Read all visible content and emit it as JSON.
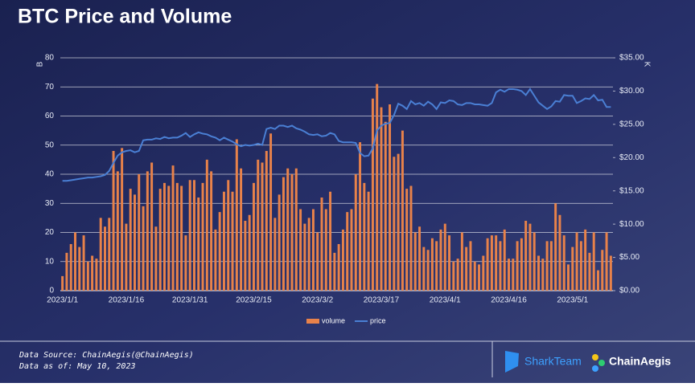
{
  "chart_data": {
    "type": "bar-line",
    "title": "BTC Price and Volume",
    "y_label": "B",
    "y2_label": "K",
    "categories": [
      "2023/1/1",
      null,
      null,
      null,
      null,
      null,
      null,
      null,
      null,
      null,
      null,
      null,
      null,
      null,
      null,
      "2023/1/16",
      null,
      null,
      null,
      null,
      null,
      null,
      null,
      null,
      null,
      null,
      null,
      null,
      null,
      null,
      "2023/1/31",
      null,
      null,
      null,
      null,
      null,
      null,
      null,
      null,
      null,
      null,
      null,
      null,
      null,
      null,
      "2023/2/15",
      null,
      null,
      null,
      null,
      null,
      null,
      null,
      null,
      null,
      null,
      null,
      null,
      null,
      null,
      "2023/3/2",
      null,
      null,
      null,
      null,
      null,
      null,
      null,
      null,
      null,
      null,
      null,
      null,
      null,
      null,
      "2023/3/17",
      null,
      null,
      null,
      null,
      null,
      null,
      null,
      null,
      null,
      null,
      null,
      null,
      null,
      null,
      "2023/4/1",
      null,
      null,
      null,
      null,
      null,
      null,
      null,
      null,
      null,
      null,
      null,
      null,
      null,
      null,
      "2023/4/16",
      null,
      null,
      null,
      null,
      null,
      null,
      null,
      null,
      null,
      null,
      null,
      null,
      null,
      null,
      "2023/5/1",
      null,
      null,
      null,
      null,
      null,
      null,
      null,
      null,
      null
    ],
    "series": [
      {
        "name": "volume",
        "type": "bar",
        "color": "#e8824a",
        "values": [
          5,
          13,
          16,
          20,
          15,
          19,
          10,
          12,
          11,
          25,
          22,
          25,
          48,
          41,
          49,
          23,
          35,
          33,
          40,
          29,
          41,
          44,
          22,
          35,
          37,
          36,
          43,
          37,
          36,
          19,
          38,
          38,
          32,
          37,
          45,
          41,
          21,
          27,
          34,
          38,
          34,
          52,
          42,
          24,
          26,
          37,
          45,
          44,
          48,
          54,
          25,
          33,
          39,
          42,
          40,
          42,
          28,
          23,
          25,
          28,
          20,
          32,
          28,
          34,
          13,
          16,
          21,
          27,
          28,
          40,
          51,
          37,
          34,
          66,
          71,
          63,
          58,
          64,
          46,
          47,
          55,
          35,
          36,
          20,
          22,
          15,
          14,
          18,
          17,
          21,
          23,
          19,
          10,
          11,
          20,
          15,
          17,
          10,
          9,
          12,
          18,
          19,
          19,
          17,
          21,
          11,
          11,
          17,
          18,
          24,
          23,
          20,
          12,
          11,
          17,
          17,
          30,
          26,
          19,
          9,
          15,
          20,
          17,
          21,
          13,
          20,
          7,
          14,
          20,
          12
        ]
      },
      {
        "name": "price",
        "type": "line",
        "axis": "y2",
        "color": "#4a7fd4",
        "values": [
          16.5,
          16.5,
          16.6,
          16.7,
          16.8,
          16.9,
          17,
          17,
          17.1,
          17.2,
          17.4,
          18,
          19.2,
          20.3,
          20.8,
          21,
          21.1,
          20.8,
          21,
          22.6,
          22.7,
          22.7,
          22.9,
          22.8,
          23.1,
          22.9,
          23,
          23,
          23.3,
          23.7,
          23.1,
          23.5,
          23.8,
          23.6,
          23.5,
          23.2,
          23,
          22.6,
          23,
          22.7,
          22.4,
          22,
          21.7,
          21.9,
          21.8,
          21.9,
          22.1,
          21.9,
          24.3,
          24.5,
          24.3,
          24.8,
          24.8,
          24.6,
          24.8,
          24.4,
          24.2,
          23.9,
          23.5,
          23.4,
          23.5,
          23.2,
          23.3,
          23.7,
          23.5,
          22.5,
          22.3,
          22.3,
          22.3,
          22.2,
          20.7,
          20.2,
          20.3,
          21.4,
          24.1,
          24.8,
          25.1,
          25.2,
          26.4,
          28.1,
          27.8,
          27.3,
          28.5,
          28,
          28.2,
          27.8,
          28.4,
          28,
          27.3,
          28.3,
          28.2,
          28.6,
          28.5,
          28,
          27.9,
          28.2,
          28.2,
          28,
          28,
          27.9,
          27.8,
          28.2,
          29.8,
          30.2,
          29.9,
          30.3,
          30.3,
          30.2,
          30,
          29.4,
          30.3,
          29.3,
          28.3,
          27.8,
          27.3,
          27.7,
          28.5,
          28.4,
          29.4,
          29.3,
          29.3,
          28.2,
          28.5,
          28.9,
          28.8,
          29.4,
          28.6,
          28.7,
          27.6,
          27.6
        ]
      }
    ],
    "ylim": [
      0,
      80
    ],
    "yticks": [
      0,
      10,
      20,
      30,
      40,
      50,
      60,
      70,
      80
    ],
    "y2lim": [
      0,
      35
    ],
    "y2ticks": [
      {
        "value": 0,
        "label": "$0.00"
      },
      {
        "value": 5,
        "label": "$5.00"
      },
      {
        "value": 10,
        "label": "$10.00"
      },
      {
        "value": 15,
        "label": "$15.00"
      },
      {
        "value": 20,
        "label": "$20.00"
      },
      {
        "value": 25,
        "label": "$25.00"
      },
      {
        "value": 30,
        "label": "$30.00"
      },
      {
        "value": 35,
        "label": "$35.00"
      }
    ],
    "grid": true,
    "legend": "bottom"
  },
  "footer": {
    "source": "Data Source: ChainAegis(@ChainAegis)",
    "as_of": "Data as of: May 10, 2023",
    "logos": [
      "SharkTeam",
      "ChainAegis"
    ]
  }
}
